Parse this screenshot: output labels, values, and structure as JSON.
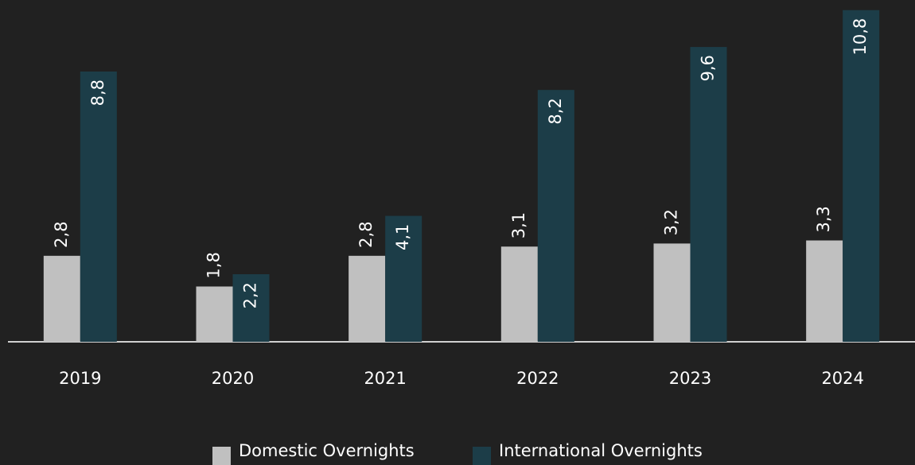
{
  "chart_data": {
    "type": "bar",
    "categories": [
      "2019",
      "2020",
      "2021",
      "2022",
      "2023",
      "2024"
    ],
    "series": [
      {
        "name": "Domestic Overnights",
        "color": "#c0c0c0",
        "values": [
          2.8,
          1.8,
          2.8,
          3.1,
          3.2,
          3.3
        ],
        "value_labels": [
          "2,8",
          "1,8",
          "2,8",
          "3,1",
          "3,2",
          "3,3"
        ]
      },
      {
        "name": "International Overnights",
        "color": "#1c3d48",
        "values": [
          8.8,
          2.2,
          4.1,
          8.2,
          9.6,
          10.8
        ],
        "value_labels": [
          "8,8",
          "2,2",
          "4,1",
          "8,2",
          "9,6",
          "10,8"
        ]
      }
    ],
    "ylim": [
      0,
      11
    ],
    "legend": "bottom"
  }
}
